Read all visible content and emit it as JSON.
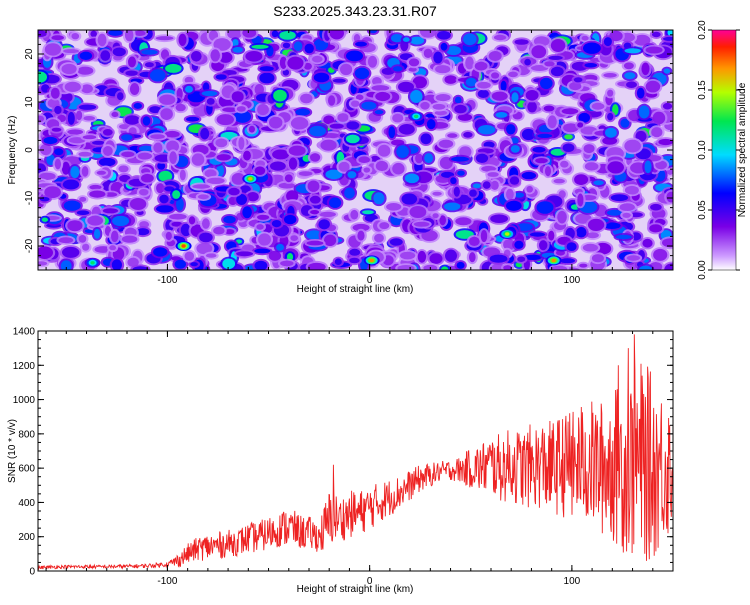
{
  "title": "S233.2025.343.23.31.R07",
  "colors": {
    "snr_line": "#ee2222",
    "background": "#ffffff",
    "axis": "#000000"
  },
  "chart_data": [
    {
      "type": "heatmap",
      "title": "S233.2025.343.23.31.R07",
      "xlabel": "Height of straight line (km)",
      "ylabel": "Frequency (Hz)",
      "xlim": [
        -164,
        150
      ],
      "ylim": [
        -25,
        25
      ],
      "x_ticks": [
        "-100",
        "0",
        "100"
      ],
      "y_ticks": [
        "-20",
        "-10",
        "0",
        "10",
        "20"
      ],
      "grid": false,
      "colorbar": {
        "label": "Normalized spectral amplitude",
        "range": [
          0,
          0.2
        ],
        "ticks": [
          "0.00",
          "0.05",
          "0.10",
          "0.15",
          "0.20"
        ],
        "colormap": "rainbow (white-violet-blue-cyan-green-yellow-red-magenta)"
      },
      "values_summary": "Dense speckle of blobs; mostly violet/blue (amplitude ~0.02-0.06) with scattered cyan/green/yellow spots up to ~0.18",
      "peaks": [
        {
          "x": -92,
          "y": -20,
          "value": 0.18
        },
        {
          "x": -59,
          "y": -6,
          "value": 0.16
        },
        {
          "x": 1,
          "y": -23,
          "value": 0.17
        },
        {
          "x": 68,
          "y": -17.5,
          "value": 0.15
        },
        {
          "x": 91,
          "y": -23,
          "value": 0.17
        },
        {
          "x": 23,
          "y": 7,
          "value": 0.12
        },
        {
          "x": -137,
          "y": -23.5,
          "value": 0.12
        }
      ]
    },
    {
      "type": "line",
      "xlabel": "Height of straight line (km)",
      "ylabel": "SNR (10 * v/v)",
      "xlim": [
        -164,
        150
      ],
      "ylim": [
        0,
        1400
      ],
      "x_ticks": [
        "-100",
        "0",
        "100"
      ],
      "y_ticks": [
        "0",
        "200",
        "400",
        "600",
        "800",
        "1000",
        "1200",
        "1400"
      ],
      "grid": false,
      "series": [
        {
          "x": [
            -164,
            -150,
            -130,
            -110,
            -100,
            -95,
            -90,
            -85,
            -80,
            -75,
            -70,
            -65,
            -60,
            -55,
            -50,
            -45,
            -40,
            -35,
            -30,
            -25,
            -20,
            -18,
            -15,
            -10,
            -5,
            0,
            5,
            10,
            15,
            20,
            25,
            30,
            35,
            40,
            45,
            50,
            55,
            60,
            65,
            70,
            75,
            80,
            85,
            90,
            95,
            100,
            105,
            110,
            115,
            120,
            125,
            130,
            135,
            140,
            145,
            150
          ],
          "mean": [
            20,
            25,
            25,
            30,
            40,
            60,
            100,
            130,
            140,
            150,
            160,
            170,
            190,
            200,
            220,
            240,
            260,
            230,
            220,
            200,
            280,
            320,
            300,
            330,
            340,
            370,
            400,
            430,
            460,
            500,
            540,
            560,
            580,
            590,
            590,
            600,
            600,
            620,
            600,
            620,
            600,
            610,
            620,
            600,
            620,
            600,
            640,
            620,
            600,
            620,
            600,
            620,
            640,
            600,
            620,
            600
          ],
          "spread": [
            10,
            10,
            10,
            12,
            15,
            40,
            60,
            70,
            80,
            80,
            80,
            80,
            90,
            90,
            100,
            100,
            120,
            100,
            100,
            90,
            200,
            150,
            130,
            140,
            130,
            130,
            120,
            110,
            100,
            90,
            80,
            70,
            60,
            60,
            80,
            120,
            150,
            180,
            200,
            220,
            230,
            250,
            260,
            280,
            300,
            330,
            350,
            380,
            400,
            450,
            500,
            550,
            600,
            550,
            450,
            400
          ],
          "peaks": [
            [
              -18,
              620
            ],
            [
              99,
              920
            ],
            [
              123,
              1200
            ],
            [
              128,
              1300
            ],
            [
              131,
              1380
            ]
          ]
        }
      ]
    }
  ]
}
